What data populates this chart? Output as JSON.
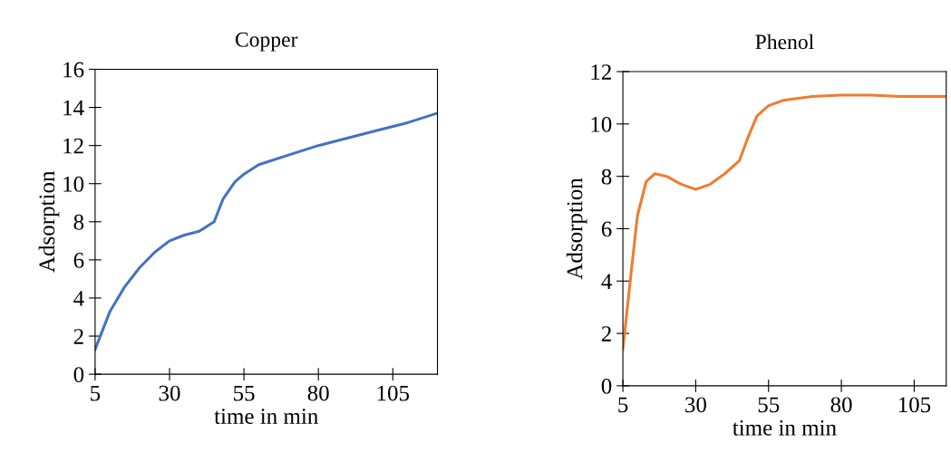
{
  "chart_data": [
    {
      "type": "line",
      "title": "Copper",
      "xlabel": "time in min",
      "ylabel": "Adsorption",
      "xlim": [
        5,
        120
      ],
      "xticks": [
        5,
        30,
        55,
        80,
        105
      ],
      "ylim": [
        0,
        16
      ],
      "yticks": [
        0,
        2,
        4,
        6,
        8,
        10,
        12,
        14,
        16
      ],
      "grid": false,
      "legend": false,
      "x": [
        5,
        10,
        15,
        20,
        25,
        30,
        35,
        40,
        45,
        48,
        52,
        55,
        60,
        70,
        80,
        90,
        100,
        110,
        120
      ],
      "series": [
        {
          "color": "#4472c4",
          "values": [
            1.3,
            3.3,
            4.6,
            5.6,
            6.4,
            7.0,
            7.3,
            7.5,
            8.0,
            9.2,
            10.1,
            10.5,
            11.0,
            11.5,
            12.0,
            12.4,
            12.8,
            13.2,
            13.7
          ]
        }
      ]
    },
    {
      "type": "line",
      "title": "Phenol",
      "xlabel": "time in min",
      "ylabel": "Adsorption",
      "xlim": [
        5,
        116
      ],
      "xticks": [
        5,
        30,
        55,
        80,
        105
      ],
      "ylim": [
        0,
        12
      ],
      "yticks": [
        0,
        2,
        4,
        6,
        8,
        10,
        12
      ],
      "grid": false,
      "legend": false,
      "x": [
        5,
        8,
        10,
        13,
        16,
        20,
        25,
        30,
        35,
        40,
        45,
        48,
        51,
        55,
        60,
        70,
        80,
        90,
        100,
        110,
        116
      ],
      "series": [
        {
          "color": "#ed7d31",
          "values": [
            1.4,
            4.5,
            6.5,
            7.8,
            8.1,
            8.0,
            7.7,
            7.5,
            7.7,
            8.1,
            8.6,
            9.5,
            10.3,
            10.7,
            10.9,
            11.05,
            11.1,
            11.1,
            11.05,
            11.05,
            11.05
          ]
        }
      ]
    }
  ]
}
